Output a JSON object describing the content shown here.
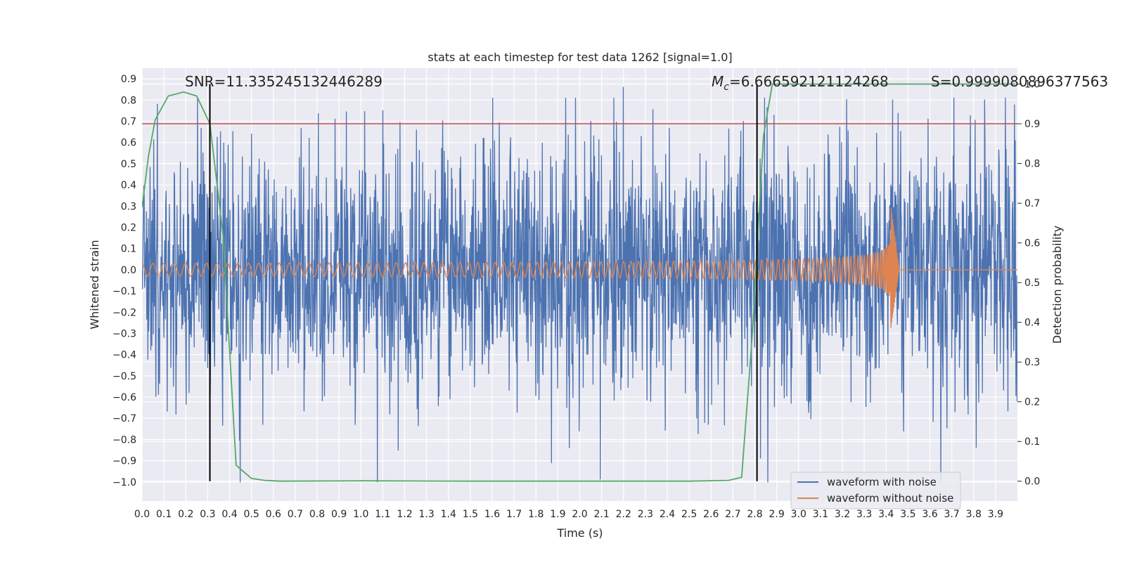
{
  "chart_data": {
    "type": "line",
    "title": "stats at each timestep for test data 1262 [signal=1.0]",
    "xlabel": "Time (s)",
    "ylabel": "Whitened strain",
    "ylabel_right": "Detection probability",
    "xlim": [
      0.0,
      4.0
    ],
    "ylim": [
      -1.09,
      0.95
    ],
    "ylim_right": [
      -0.05,
      1.04
    ],
    "x_ticks": [
      "0.0",
      "0.1",
      "0.2",
      "0.3",
      "0.4",
      "0.5",
      "0.6",
      "0.7",
      "0.8",
      "0.9",
      "1.0",
      "1.1",
      "1.2",
      "1.3",
      "1.4",
      "1.5",
      "1.6",
      "1.7",
      "1.8",
      "1.9",
      "2.0",
      "2.1",
      "2.2",
      "2.3",
      "2.4",
      "2.5",
      "2.6",
      "2.7",
      "2.8",
      "2.9",
      "3.0",
      "3.1",
      "3.2",
      "3.3",
      "3.4",
      "3.5",
      "3.6",
      "3.7",
      "3.8",
      "3.9"
    ],
    "y_ticks": [
      "0.9",
      "0.8",
      "0.7",
      "0.6",
      "0.5",
      "0.4",
      "0.3",
      "0.2",
      "0.1",
      "0.0",
      "−0.1",
      "−0.2",
      "−0.3",
      "−0.4",
      "−0.5",
      "−0.6",
      "−0.7",
      "−0.8",
      "−0.9",
      "−1.0"
    ],
    "y_ticks_right": [
      "1.0",
      "0.9",
      "0.8",
      "0.7",
      "0.6",
      "0.5",
      "0.4",
      "0.3",
      "0.2",
      "0.1",
      "0.0"
    ],
    "grid": true,
    "legend_position": "lower-right",
    "annotations": {
      "snr": "SNR=11.335245132446289",
      "mc": "=6.666592121124268",
      "mc_symbol": "M",
      "mc_sub": "c",
      "s": "S=0.9999080896377563"
    },
    "vertical_lines_x": [
      0.31,
      2.81
    ],
    "threshold_probability": 0.9,
    "series": [
      {
        "name": "waveform with noise",
        "color": "#4c72b0",
        "kind": "noise",
        "duration": 4.0,
        "envelope_quantiles": {
          "p90_upper": 0.52,
          "p90_lower": -0.55,
          "max": 0.87,
          "min": -1.0
        },
        "spikes": [
          [
            0.07,
            0.78
          ],
          [
            1.1,
            0.75
          ],
          [
            2.2,
            0.86
          ],
          [
            2.86,
            -1.0
          ],
          [
            1.87,
            -0.91
          ],
          [
            1.17,
            -0.85
          ],
          [
            3.43,
            0.8
          ],
          [
            3.48,
            -0.76
          ],
          [
            3.85,
            0.8
          ]
        ]
      },
      {
        "name": "waveform without noise",
        "color": "#dd8452",
        "kind": "chirp",
        "amplitude_start": 0.03,
        "amplitude_at_2_8": 0.09,
        "amplitude_peak": 0.32,
        "peak_time": 3.42,
        "frequency_start_hz": 20,
        "frequency_at_2_8_hz": 45
      },
      {
        "name": "",
        "color": "#55a868",
        "kind": "probability",
        "x": [
          0.0,
          0.03,
          0.06,
          0.12,
          0.19,
          0.25,
          0.31,
          0.37,
          0.43,
          0.5,
          0.56,
          0.63,
          1.0,
          1.5,
          2.0,
          2.5,
          2.68,
          2.74,
          2.79,
          2.81,
          2.84,
          2.88,
          3.0,
          3.5,
          3.99
        ],
        "y": [
          0.69,
          0.82,
          0.91,
          0.97,
          0.98,
          0.97,
          0.9,
          0.62,
          0.04,
          0.007,
          0.002,
          0.0,
          0.001,
          0.0,
          0.0,
          0.0,
          0.002,
          0.01,
          0.38,
          0.58,
          0.87,
          1.0,
          1.0,
          1.0,
          1.0
        ]
      }
    ],
    "legend": [
      "waveform with noise",
      "waveform without noise"
    ]
  }
}
